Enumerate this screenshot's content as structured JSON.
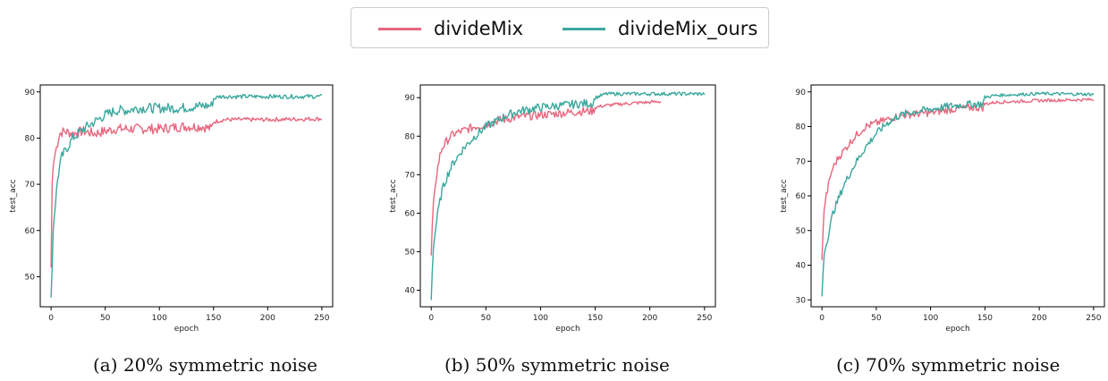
{
  "legend": {
    "items": [
      {
        "label": "divideMix",
        "color": "#e8677f"
      },
      {
        "label": "divideMix_ours",
        "color": "#3aa89d"
      }
    ]
  },
  "captions": [
    "(a) 20% symmetric noise",
    "(b) 50% symmetric noise",
    "(c) 70% symmetric noise"
  ],
  "chart_data": [
    {
      "type": "line",
      "xlabel": "epoch",
      "ylabel": "test_acc",
      "xlim": [
        -10,
        260
      ],
      "ylim": [
        43.5,
        91.5
      ],
      "xticks": [
        0,
        50,
        100,
        150,
        200,
        250
      ],
      "yticks": [
        50,
        60,
        70,
        80,
        90
      ],
      "series": [
        {
          "name": "divideMix",
          "color": "#e8677f",
          "points": [
            [
              0,
              52
            ],
            [
              1,
              70
            ],
            [
              2,
              74
            ],
            [
              4,
              77
            ],
            [
              6,
              79
            ],
            [
              8,
              81
            ],
            [
              12,
              81.5
            ],
            [
              20,
              81
            ],
            [
              30,
              81.5
            ],
            [
              40,
              81
            ],
            [
              50,
              81.5
            ],
            [
              60,
              82
            ],
            [
              80,
              82
            ],
            [
              100,
              82
            ],
            [
              120,
              82.5
            ],
            [
              140,
              82.5
            ],
            [
              148,
              82
            ],
            [
              150,
              83.5
            ],
            [
              160,
              84
            ],
            [
              200,
              84
            ],
            [
              250,
              84.2
            ]
          ],
          "end": 250
        },
        {
          "name": "divideMix_ours",
          "color": "#3aa89d",
          "points": [
            [
              0,
              45.5
            ],
            [
              1,
              52
            ],
            [
              2,
              60
            ],
            [
              4,
              66
            ],
            [
              6,
              71
            ],
            [
              8,
              74
            ],
            [
              10,
              76
            ],
            [
              15,
              78
            ],
            [
              20,
              80
            ],
            [
              30,
              82
            ],
            [
              40,
              83.5
            ],
            [
              50,
              85
            ],
            [
              60,
              86
            ],
            [
              70,
              86
            ],
            [
              80,
              86.5
            ],
            [
              100,
              86.5
            ],
            [
              120,
              86.5
            ],
            [
              140,
              87
            ],
            [
              148,
              87
            ],
            [
              150,
              88.5
            ],
            [
              155,
              89
            ],
            [
              200,
              89
            ],
            [
              250,
              89
            ]
          ],
          "end": 250
        }
      ]
    },
    {
      "type": "line",
      "xlabel": "epoch",
      "ylabel": "test_acc",
      "xlim": [
        -10,
        260
      ],
      "ylim": [
        35.7,
        93.3
      ],
      "xticks": [
        0,
        50,
        100,
        150,
        200,
        250
      ],
      "yticks": [
        40,
        50,
        60,
        70,
        80,
        90
      ],
      "series": [
        {
          "name": "divideMix",
          "color": "#e8677f",
          "points": [
            [
              0,
              49
            ],
            [
              1,
              57
            ],
            [
              2,
              63
            ],
            [
              4,
              68
            ],
            [
              6,
              72
            ],
            [
              8,
              75
            ],
            [
              10,
              77
            ],
            [
              15,
              79
            ],
            [
              20,
              80.5
            ],
            [
              30,
              81.5
            ],
            [
              40,
              82.5
            ],
            [
              50,
              83
            ],
            [
              60,
              84
            ],
            [
              70,
              84.5
            ],
            [
              80,
              85
            ],
            [
              100,
              85.5
            ],
            [
              120,
              86
            ],
            [
              140,
              86.5
            ],
            [
              148,
              86.5
            ],
            [
              150,
              87.5
            ],
            [
              160,
              88
            ],
            [
              180,
              88.5
            ],
            [
              210,
              89
            ]
          ],
          "end": 210
        },
        {
          "name": "divideMix_ours",
          "color": "#3aa89d",
          "points": [
            [
              0,
              37.5
            ],
            [
              1,
              45
            ],
            [
              2,
              51
            ],
            [
              4,
              56
            ],
            [
              6,
              60
            ],
            [
              8,
              63
            ],
            [
              10,
              66
            ],
            [
              15,
              70
            ],
            [
              20,
              73
            ],
            [
              30,
              77
            ],
            [
              40,
              80
            ],
            [
              50,
              82.5
            ],
            [
              60,
              84
            ],
            [
              70,
              85.5
            ],
            [
              80,
              86.5
            ],
            [
              100,
              87.5
            ],
            [
              120,
              88
            ],
            [
              140,
              88.5
            ],
            [
              148,
              88.5
            ],
            [
              150,
              90
            ],
            [
              160,
              91
            ],
            [
              200,
              91
            ],
            [
              250,
              91
            ]
          ],
          "end": 250
        }
      ]
    },
    {
      "type": "line",
      "xlabel": "epoch",
      "ylabel": "test_acc",
      "xlim": [
        -10,
        260
      ],
      "ylim": [
        28,
        92
      ],
      "xticks": [
        0,
        50,
        100,
        150,
        200,
        250
      ],
      "yticks": [
        30,
        40,
        50,
        60,
        70,
        80,
        90
      ],
      "series": [
        {
          "name": "divideMix",
          "color": "#e8677f",
          "points": [
            [
              0,
              41.5
            ],
            [
              1,
              50
            ],
            [
              2,
              56
            ],
            [
              4,
              60
            ],
            [
              6,
              63
            ],
            [
              8,
              66
            ],
            [
              10,
              68
            ],
            [
              15,
              71
            ],
            [
              20,
              73
            ],
            [
              30,
              77
            ],
            [
              40,
              80
            ],
            [
              50,
              81
            ],
            [
              60,
              82
            ],
            [
              70,
              83
            ],
            [
              80,
              83.5
            ],
            [
              100,
              84
            ],
            [
              120,
              85
            ],
            [
              140,
              85.5
            ],
            [
              148,
              85.5
            ],
            [
              150,
              86.5
            ],
            [
              160,
              87
            ],
            [
              200,
              87.5
            ],
            [
              250,
              87.8
            ]
          ],
          "end": 250
        },
        {
          "name": "divideMix_ours",
          "color": "#3aa89d",
          "points": [
            [
              0,
              31
            ],
            [
              1,
              38
            ],
            [
              2,
              43
            ],
            [
              4,
              46
            ],
            [
              6,
              49
            ],
            [
              8,
              52
            ],
            [
              10,
              55
            ],
            [
              15,
              59
            ],
            [
              20,
              63
            ],
            [
              30,
              69
            ],
            [
              40,
              74
            ],
            [
              50,
              78
            ],
            [
              60,
              81
            ],
            [
              70,
              83
            ],
            [
              80,
              84
            ],
            [
              100,
              85
            ],
            [
              120,
              86
            ],
            [
              140,
              86.5
            ],
            [
              148,
              86.5
            ],
            [
              150,
              88.5
            ],
            [
              160,
              89
            ],
            [
              200,
              89.5
            ],
            [
              250,
              89.3
            ]
          ],
          "end": 250
        }
      ]
    }
  ]
}
